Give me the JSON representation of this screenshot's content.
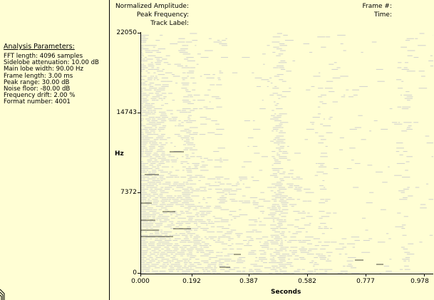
{
  "left_panel": {
    "title": "Analysis Parameters:",
    "params": [
      "FFT length: 4096 samples",
      "Sidelobe attenuation: 10.00 dB",
      "Main lobe width: 90.00 Hz",
      "Frame length:  3.00 ms",
      "Peak range: 30.00 dB",
      "Noise floor: -80.00 dB",
      "Frequency drift: 2.00 %",
      "Format number: 4001"
    ]
  },
  "header": {
    "normalized_amplitude_label": "Normalized Amplitude:",
    "peak_frequency_label": "Peak Frequency:",
    "track_label_label": "Track Label:",
    "frame_label": "Frame #:",
    "time_label": "Time:"
  },
  "axes": {
    "y_label": "Hz",
    "x_label": "Seconds",
    "y_ticks": [
      "22050",
      "14743",
      "7372",
      "0"
    ],
    "x_ticks": [
      "0.000",
      "0.192",
      "0.387",
      "0.582",
      "0.777",
      "0.978"
    ],
    "y_range": [
      0,
      22050
    ],
    "x_range": [
      0,
      0.978
    ]
  },
  "colors": {
    "background": "#fffed4",
    "spectrum": "#cfcfcf",
    "peak": "#000000"
  }
}
